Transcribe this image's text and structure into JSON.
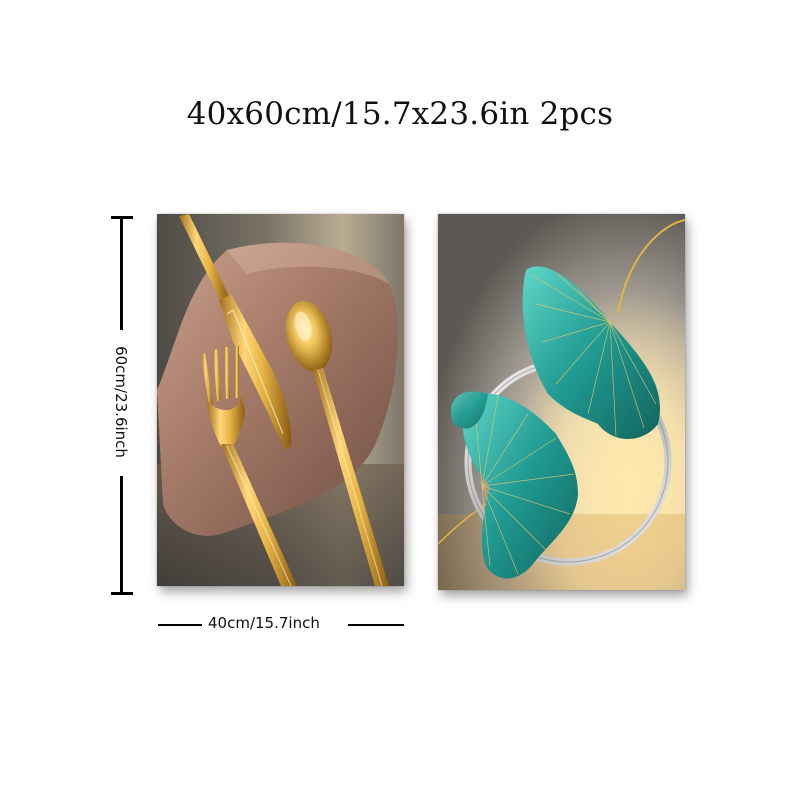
{
  "title": "40x60cm/15.7x23.6in 2pcs",
  "height_label": "60cm/23.6inch",
  "width_label": "40cm/15.7inch",
  "panels": [
    {
      "subject": "gold cutlery (knife, fork, spoon) on copper plate"
    },
    {
      "subject": "teal ginkgo leaves with silver ring"
    }
  ]
}
